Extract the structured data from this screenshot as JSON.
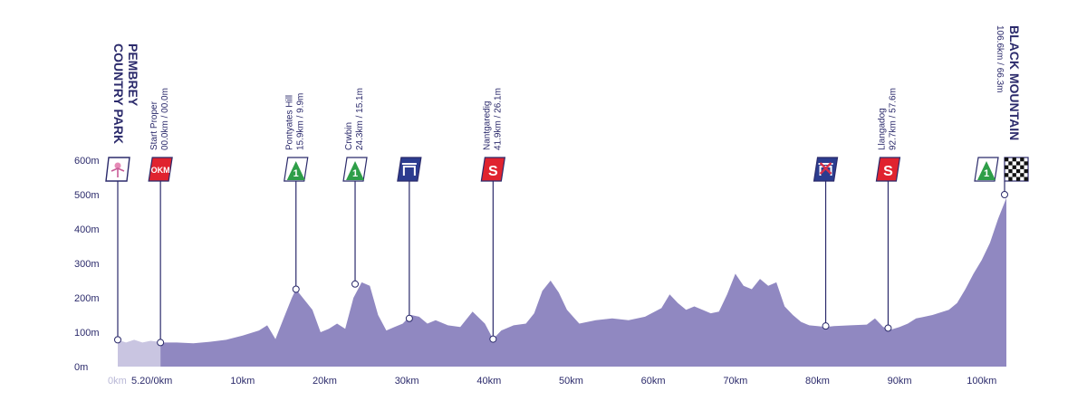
{
  "chart_data": {
    "type": "area",
    "title": "",
    "xlabel": "",
    "ylabel": "",
    "ylim": [
      0,
      600
    ],
    "y_ticks": [
      "0m",
      "100m",
      "200m",
      "300m",
      "400m",
      "500m",
      "600m"
    ],
    "y_tick_values": [
      0,
      100,
      200,
      300,
      400,
      500,
      600
    ],
    "x_ticks": [
      "0km",
      "5.20/0km",
      "10km",
      "20km",
      "30km",
      "40km",
      "50km",
      "60km",
      "70km",
      "80km",
      "90km",
      "100km"
    ],
    "x_tick_values": [
      -5.2,
      0,
      10,
      20,
      30,
      40,
      50,
      60,
      70,
      80,
      90,
      100
    ],
    "xlim": [
      -5.2,
      103
    ],
    "neutral_zone": [
      -5.2,
      0
    ],
    "colors": {
      "profile": "#9088c1",
      "neutral": "#c9c5e1",
      "line": "#2b2a6b",
      "green": "#2e9e48",
      "red": "#e0232f",
      "blue": "#2b3c8f",
      "crown_red": "#d6304a"
    },
    "series": [
      {
        "x": [
          -5.2,
          -4.2,
          -3.2,
          -2.2,
          -1.2,
          -0.2,
          0,
          2,
          4,
          6,
          8,
          10,
          12,
          13,
          14,
          15,
          16,
          16.5,
          17.5,
          18.5,
          19.5,
          20.5,
          21.5,
          22.5,
          23.5,
          24.5,
          25.5,
          26.5,
          27.5,
          28.5,
          29.5,
          30.5,
          31.5,
          32.5,
          33.5,
          35,
          36.5,
          38,
          39.5,
          40.5,
          41.5,
          43,
          44.5,
          45.5,
          46.5,
          47.5,
          48.5,
          49.5,
          51,
          53,
          55,
          57,
          59,
          61,
          62,
          63,
          64,
          65,
          66,
          67,
          68,
          69,
          70,
          71,
          72,
          73,
          74,
          75,
          76,
          77,
          78,
          79,
          80,
          81,
          82,
          84,
          86,
          87,
          88,
          89,
          90,
          91,
          92,
          94,
          96,
          97,
          98,
          99,
          100,
          101,
          102,
          103
        ],
        "y": [
          78,
          70,
          78,
          70,
          75,
          72,
          70,
          70,
          68,
          72,
          78,
          90,
          105,
          120,
          80,
          140,
          200,
          225,
          195,
          165,
          100,
          110,
          125,
          110,
          200,
          245,
          235,
          150,
          105,
          115,
          125,
          150,
          145,
          125,
          135,
          120,
          115,
          160,
          125,
          80,
          105,
          120,
          125,
          155,
          220,
          250,
          215,
          165,
          125,
          135,
          140,
          135,
          145,
          170,
          210,
          185,
          165,
          175,
          165,
          155,
          160,
          210,
          270,
          235,
          225,
          255,
          235,
          245,
          175,
          150,
          130,
          120,
          118,
          115,
          118,
          120,
          122,
          140,
          115,
          108,
          115,
          125,
          140,
          150,
          165,
          185,
          225,
          270,
          310,
          360,
          430,
          490
        ]
      }
    ],
    "waypoints": [
      {
        "name": "PEMBREY COUNTRY PARK",
        "km": -5.2,
        "alt": 78,
        "icon": "flag-off",
        "style": "bold"
      },
      {
        "name": "Start Proper",
        "info": "00.0km / 00.0m",
        "km": 0,
        "alt": 70,
        "icon": "okm",
        "badge_text": "OKM"
      },
      {
        "name": "Pontyates Hill",
        "info": "15.9km / 9.9m",
        "km": 16.5,
        "alt": 225,
        "icon": "kom",
        "badge_text": "1"
      },
      {
        "name": "Crwbin",
        "info": "24.3km / 15.1m",
        "km": 23.7,
        "alt": 240,
        "icon": "kom",
        "badge_text": "1"
      },
      {
        "name": "",
        "km": 30.3,
        "alt": 140,
        "icon": "feed",
        "label": false
      },
      {
        "name": "Nantgaredig",
        "info": "41.9km / 26.1m",
        "km": 40.5,
        "alt": 80,
        "icon": "sprint",
        "badge_text": "S"
      },
      {
        "name": "",
        "km": 81,
        "alt": 118,
        "icon": "feed-crossed",
        "label": false
      },
      {
        "name": "Llangadog",
        "info": "92.7km / 57.6m",
        "km": 88.6,
        "alt": 112,
        "icon": "sprint",
        "badge_text": "S"
      },
      {
        "name": "BLACK MOUNTAIN",
        "info": "106.6km / 66.3m",
        "km": 103,
        "alt": 500,
        "icon": "finish",
        "badge_text": "1",
        "style": "bold"
      }
    ]
  }
}
